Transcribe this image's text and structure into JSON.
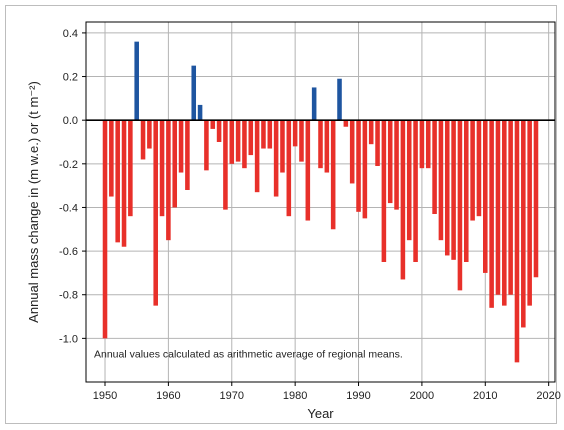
{
  "chart_data": {
    "type": "bar",
    "xlabel": "Year",
    "ylabel": "Annual mass change in (m w.e.) or (t m⁻²)",
    "annotation": "Annual values calculated as arithmetic average of regional means.",
    "xlim": [
      1947,
      2021
    ],
    "ylim": [
      -1.2,
      0.45
    ],
    "xticks": [
      1950,
      1960,
      1970,
      1980,
      1990,
      2000,
      2010,
      2020
    ],
    "yticks": [
      0.4,
      0.2,
      0.0,
      -0.2,
      -0.4,
      -0.6,
      -0.8,
      -1.0
    ],
    "ytick_labels": [
      "0.4",
      "0.2",
      "0.0",
      "-0.2",
      "-0.4",
      "-0.6",
      "-0.8",
      "-1.0"
    ],
    "grid": true,
    "colors": {
      "negative": "#e8302a",
      "positive": "#1e55a0",
      "grid": "#b4b4b4",
      "zero_line": "#000000"
    },
    "x": [
      1950,
      1951,
      1952,
      1953,
      1954,
      1955,
      1956,
      1957,
      1958,
      1959,
      1960,
      1961,
      1962,
      1963,
      1964,
      1965,
      1966,
      1967,
      1968,
      1969,
      1970,
      1971,
      1972,
      1973,
      1974,
      1975,
      1976,
      1977,
      1978,
      1979,
      1980,
      1981,
      1982,
      1983,
      1984,
      1985,
      1986,
      1987,
      1988,
      1989,
      1990,
      1991,
      1992,
      1993,
      1994,
      1995,
      1996,
      1997,
      1998,
      1999,
      2000,
      2001,
      2002,
      2003,
      2004,
      2005,
      2006,
      2007,
      2008,
      2009,
      2010,
      2011,
      2012,
      2013,
      2014,
      2015,
      2016,
      2017,
      2018
    ],
    "values": [
      -1.0,
      -0.35,
      -0.56,
      -0.58,
      -0.44,
      0.36,
      -0.18,
      -0.13,
      -0.85,
      -0.44,
      -0.55,
      -0.4,
      -0.24,
      -0.32,
      0.25,
      0.07,
      -0.23,
      -0.04,
      -0.1,
      -0.41,
      -0.2,
      -0.19,
      -0.22,
      -0.16,
      -0.33,
      -0.13,
      -0.13,
      -0.35,
      -0.24,
      -0.44,
      -0.12,
      -0.19,
      -0.46,
      0.15,
      -0.22,
      -0.24,
      -0.5,
      0.19,
      -0.03,
      -0.29,
      -0.42,
      -0.45,
      -0.11,
      -0.21,
      -0.65,
      -0.38,
      -0.41,
      -0.73,
      -0.55,
      -0.65,
      -0.22,
      -0.22,
      -0.43,
      -0.55,
      -0.62,
      -0.64,
      -0.78,
      -0.65,
      -0.46,
      -0.44,
      -0.7,
      -0.86,
      -0.8,
      -0.85,
      -0.8,
      -1.11,
      -0.95,
      -0.85,
      -0.72
    ]
  }
}
